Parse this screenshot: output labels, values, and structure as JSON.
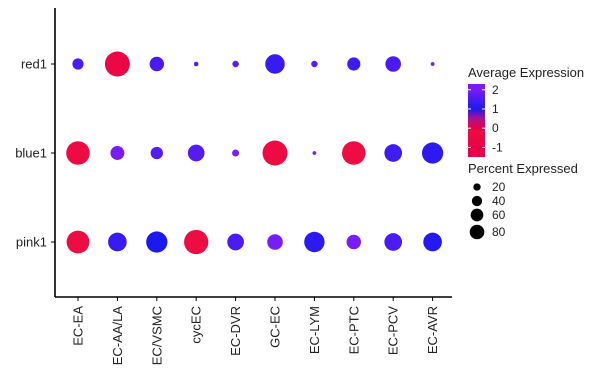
{
  "chart_data": {
    "type": "dotplot",
    "title": "",
    "xlabel": "",
    "ylabel": "",
    "categories": [
      "EC-EA",
      "EC-AA/LA",
      "EC/VSMC",
      "cycEC",
      "EC-DVR",
      "GC-EC",
      "EC-LYM",
      "EC-PTC",
      "EC-PCV",
      "EC-AVR"
    ],
    "genes": [
      "red1",
      "blue1",
      "pink1"
    ],
    "series": [
      {
        "gene": "red1",
        "percent_expressed": [
          18,
          90,
          30,
          3,
          6,
          55,
          6,
          25,
          35,
          2
        ],
        "average_expression": [
          1.5,
          -0.5,
          1.5,
          1.6,
          1.7,
          1.3,
          1.7,
          1.4,
          1.5,
          1.8
        ]
      },
      {
        "gene": "blue1",
        "percent_expressed": [
          80,
          28,
          22,
          40,
          7,
          90,
          2,
          80,
          45,
          65
        ],
        "average_expression": [
          -0.3,
          2.0,
          1.6,
          1.6,
          2.0,
          -0.3,
          2.0,
          -0.2,
          1.4,
          1.2
        ]
      },
      {
        "gene": "pink1",
        "percent_expressed": [
          75,
          50,
          65,
          85,
          40,
          35,
          60,
          30,
          45,
          50
        ],
        "average_expression": [
          -0.2,
          1.3,
          1.0,
          -0.2,
          1.5,
          2.0,
          1.2,
          2.0,
          1.5,
          1.1
        ]
      }
    ],
    "legend": {
      "placement": "right",
      "color_title": "Average Expression",
      "color_ticks": [
        "2",
        "1",
        "0",
        "-1"
      ],
      "color_tick_values": [
        2,
        1,
        0,
        -1
      ],
      "color_range": [
        -1.5,
        2.3
      ],
      "size_title": "Percent Expressed",
      "size_ticks": [
        "20",
        "40",
        "60",
        "80"
      ],
      "size_tick_values": [
        20,
        40,
        60,
        80
      ]
    },
    "colors": {
      "high": "#7a1cf5",
      "mid": "#1a1af0",
      "low": "#f01040",
      "zero": "#e8004a"
    },
    "grid": false
  }
}
